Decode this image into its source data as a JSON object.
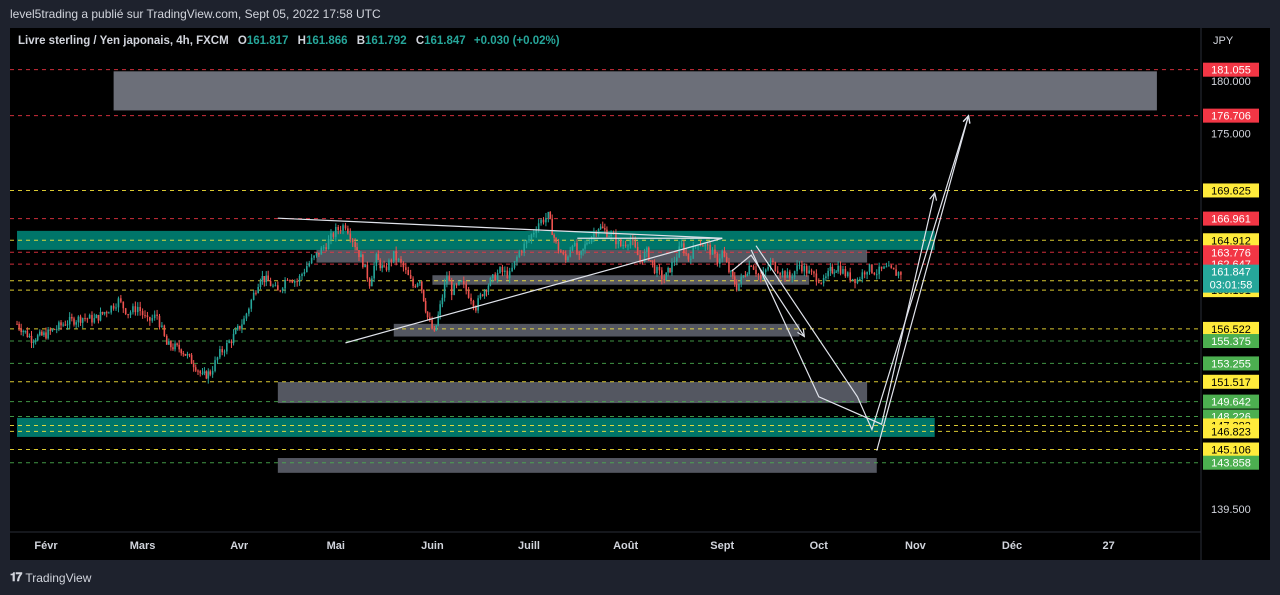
{
  "header": {
    "publisher": "level5trading a publié sur TradingView.com, Sept 05, 2022 17:58 UTC"
  },
  "legend": {
    "symbol": "Livre sterling / Yen japonais, 4h, FXCM",
    "open_key": "O",
    "open": "161.817",
    "high_key": "H",
    "high": "161.866",
    "low_key": "B",
    "low": "161.792",
    "close_key": "C",
    "close": "161.847",
    "change": "+0.030 (+0.02%)"
  },
  "footer": {
    "brand": "TradingView",
    "logo_icon": "tradingview-logo-icon"
  },
  "chart_data": {
    "type": "candlestick",
    "currency": "JPY",
    "x_ticks": [
      "Févr",
      "Mars",
      "Avr",
      "Mai",
      "Juin",
      "Juill",
      "Août",
      "Sept",
      "Oct",
      "Nov",
      "Déc",
      "27"
    ],
    "y_ticks": [
      "180.000",
      "175.000",
      "139.500"
    ],
    "ylim": [
      137.3,
      185.0
    ],
    "current_price": {
      "value": "161.847",
      "countdown": "03:01:58",
      "color": "#26a69a"
    },
    "levels": [
      {
        "label": "181.055",
        "value": 181.055,
        "color": "#f23645",
        "text_color": "#ffffff",
        "line": "red"
      },
      {
        "label": "176.706",
        "value": 176.706,
        "color": "#f23645",
        "text_color": "#ffffff",
        "line": "red"
      },
      {
        "label": "169.625",
        "value": 169.625,
        "color": "#ffeb3b",
        "text_color": "#000000",
        "line": "yellow"
      },
      {
        "label": "166.961",
        "value": 166.961,
        "color": "#f23645",
        "text_color": "#ffffff",
        "line": "red"
      },
      {
        "label": "164.912",
        "value": 164.912,
        "color": "#ffeb3b",
        "text_color": "#000000",
        "line": "yellow"
      },
      {
        "label": "163.776",
        "value": 163.776,
        "color": "#f23645",
        "text_color": "#ffffff",
        "line": "red"
      },
      {
        "label": "162.647",
        "value": 162.647,
        "color": "#f23645",
        "text_color": "#ffffff",
        "line": "red"
      },
      {
        "label": "161.080",
        "value": 161.08,
        "color": "#ffeb3b",
        "text_color": "#000000",
        "line": "yellow"
      },
      {
        "label": "160.191",
        "value": 160.191,
        "color": "#ffeb3b",
        "text_color": "#000000",
        "line": "yellow"
      },
      {
        "label": "156.522",
        "value": 156.522,
        "color": "#ffeb3b",
        "text_color": "#000000",
        "line": "yellow"
      },
      {
        "label": "155.375",
        "value": 155.375,
        "color": "#4caf50",
        "text_color": "#ffffff",
        "line": "green"
      },
      {
        "label": "153.255",
        "value": 153.255,
        "color": "#4caf50",
        "text_color": "#ffffff",
        "line": "green"
      },
      {
        "label": "151.517",
        "value": 151.517,
        "color": "#ffeb3b",
        "text_color": "#000000",
        "line": "yellow"
      },
      {
        "label": "149.642",
        "value": 149.642,
        "color": "#4caf50",
        "text_color": "#ffffff",
        "line": "green"
      },
      {
        "label": "148.226",
        "value": 148.226,
        "color": "#4caf50",
        "text_color": "#ffffff",
        "line": "green"
      },
      {
        "label": "147.383",
        "value": 147.383,
        "color": "#ffeb3b",
        "text_color": "#000000",
        "line": "yellow"
      },
      {
        "label": "146.823",
        "value": 146.823,
        "color": "#ffeb3b",
        "text_color": "#000000",
        "line": "yellow"
      },
      {
        "label": "145.106",
        "value": 145.106,
        "color": "#ffeb3b",
        "text_color": "#000000",
        "line": "yellow"
      },
      {
        "label": "143.858",
        "value": 143.858,
        "color": "#4caf50",
        "text_color": "#ffffff",
        "line": "green"
      }
    ],
    "zones": [
      {
        "x0": 0.7,
        "x1": 11.5,
        "y0": 177.2,
        "y1": 180.9,
        "color": "#787b86"
      },
      {
        "x0": -0.3,
        "x1": 9.2,
        "y0": 164.0,
        "y1": 165.8,
        "color": "#00897b"
      },
      {
        "x0": 2.8,
        "x1": 8.5,
        "y0": 162.8,
        "y1": 164.0,
        "color": "#5d606b"
      },
      {
        "x0": 4.0,
        "x1": 7.9,
        "y0": 160.7,
        "y1": 161.6,
        "color": "#5d606b"
      },
      {
        "x0": 3.6,
        "x1": 7.8,
        "y0": 155.8,
        "y1": 157.0,
        "color": "#5d606b"
      },
      {
        "x0": 2.4,
        "x1": 8.5,
        "y0": 149.5,
        "y1": 151.5,
        "color": "#5d606b"
      },
      {
        "x0": -0.3,
        "x1": 9.2,
        "y0": 146.3,
        "y1": 148.1,
        "color": "#00897b"
      },
      {
        "x0": 2.4,
        "x1": 8.6,
        "y0": 142.9,
        "y1": 144.3,
        "color": "#5d606b"
      }
    ],
    "trendlines": [
      {
        "x0": 2.4,
        "y0": 167.0,
        "x1": 7.0,
        "y1": 165.1
      },
      {
        "x0": 3.1,
        "y0": 155.2,
        "x1": 7.0,
        "y1": 165.1
      },
      {
        "x0": 5.5,
        "y0": 165.1,
        "x1": 7.0,
        "y1": 165.1
      }
    ],
    "projection_arrows": [
      {
        "points": [
          [
            7.1,
            162.0
          ],
          [
            7.3,
            163.5
          ],
          [
            7.85,
            155.8
          ]
        ]
      },
      {
        "points": [
          [
            7.3,
            164.0
          ],
          [
            8.0,
            150.1
          ],
          [
            8.65,
            147.5
          ],
          [
            9.2,
            169.4
          ]
        ]
      },
      {
        "points": [
          [
            7.35,
            164.4
          ],
          [
            8.4,
            150.1
          ],
          [
            8.55,
            147.0
          ],
          [
            9.55,
            176.7
          ]
        ]
      },
      {
        "points": [
          [
            8.6,
            145.0
          ],
          [
            9.55,
            176.7
          ]
        ]
      }
    ],
    "series": [
      {
        "name": "GBPJPY 4h",
        "close_path": [
          [
            -0.3,
            157.0
          ],
          [
            -0.15,
            155.6
          ],
          [
            0.0,
            156.0
          ],
          [
            0.2,
            157.1
          ],
          [
            0.38,
            157.6
          ],
          [
            0.5,
            157.4
          ],
          [
            0.65,
            158.4
          ],
          [
            0.75,
            159.2
          ],
          [
            0.85,
            158.0
          ],
          [
            0.95,
            158.6
          ],
          [
            1.05,
            157.2
          ],
          [
            1.15,
            157.8
          ],
          [
            1.25,
            155.0
          ],
          [
            1.4,
            154.6
          ],
          [
            1.55,
            153.0
          ],
          [
            1.62,
            152.0
          ],
          [
            1.7,
            152.4
          ],
          [
            1.8,
            154.2
          ],
          [
            1.92,
            155.5
          ],
          [
            2.05,
            157.4
          ],
          [
            2.15,
            159.8
          ],
          [
            2.22,
            161.5
          ],
          [
            2.3,
            161.0
          ],
          [
            2.4,
            160.0
          ],
          [
            2.5,
            161.5
          ],
          [
            2.6,
            161.0
          ],
          [
            2.7,
            162.5
          ],
          [
            2.8,
            163.5
          ],
          [
            2.9,
            164.5
          ],
          [
            3.0,
            165.8
          ],
          [
            3.1,
            166.4
          ],
          [
            3.2,
            164.5
          ],
          [
            3.28,
            162.8
          ],
          [
            3.35,
            160.9
          ],
          [
            3.42,
            163.2
          ],
          [
            3.5,
            162.0
          ],
          [
            3.6,
            163.5
          ],
          [
            3.7,
            162.3
          ],
          [
            3.8,
            160.6
          ],
          [
            3.87,
            161.3
          ],
          [
            3.95,
            157.6
          ],
          [
            4.02,
            156.0
          ],
          [
            4.08,
            158.6
          ],
          [
            4.15,
            161.6
          ],
          [
            4.2,
            160.1
          ],
          [
            4.3,
            160.8
          ],
          [
            4.4,
            159.5
          ],
          [
            4.45,
            158.6
          ],
          [
            4.52,
            160.0
          ],
          [
            4.6,
            161.0
          ],
          [
            4.7,
            162.0
          ],
          [
            4.8,
            161.6
          ],
          [
            4.9,
            163.8
          ],
          [
            5.0,
            165.0
          ],
          [
            5.1,
            166.6
          ],
          [
            5.2,
            167.2
          ],
          [
            5.28,
            164.5
          ],
          [
            5.38,
            163.0
          ],
          [
            5.45,
            164.8
          ],
          [
            5.52,
            163.1
          ],
          [
            5.6,
            164.8
          ],
          [
            5.72,
            166.2
          ],
          [
            5.85,
            165.4
          ],
          [
            5.95,
            164.4
          ],
          [
            6.05,
            165.0
          ],
          [
            6.15,
            163.0
          ],
          [
            6.22,
            163.8
          ],
          [
            6.3,
            162.2
          ],
          [
            6.4,
            161.2
          ],
          [
            6.48,
            162.6
          ],
          [
            6.58,
            164.4
          ],
          [
            6.65,
            163.2
          ],
          [
            6.75,
            164.8
          ],
          [
            6.85,
            164.2
          ],
          [
            6.95,
            163.0
          ],
          [
            7.0,
            163.8
          ],
          [
            7.07,
            162.0
          ],
          [
            7.15,
            160.5
          ],
          [
            7.22,
            161.5
          ],
          [
            7.3,
            162.8
          ],
          [
            7.4,
            161.2
          ],
          [
            7.5,
            162.8
          ],
          [
            7.6,
            162.0
          ],
          [
            7.7,
            161.4
          ],
          [
            7.8,
            162.6
          ],
          [
            7.9,
            161.8
          ],
          [
            8.0,
            161.3
          ],
          [
            8.05,
            160.9
          ],
          [
            8.12,
            162.0
          ],
          [
            8.2,
            162.4
          ],
          [
            8.3,
            161.5
          ],
          [
            8.4,
            161.2
          ],
          [
            8.5,
            162.3
          ],
          [
            8.6,
            161.9
          ],
          [
            8.7,
            162.2
          ],
          [
            8.8,
            161.8
          ],
          [
            8.85,
            161.85
          ]
        ]
      }
    ]
  }
}
